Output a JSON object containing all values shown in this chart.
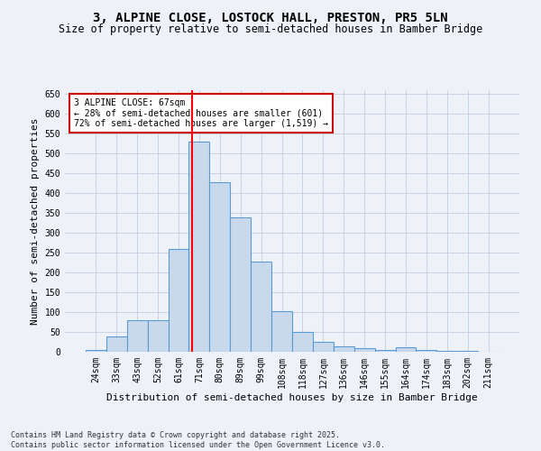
{
  "title1": "3, ALPINE CLOSE, LOSTOCK HALL, PRESTON, PR5 5LN",
  "title2": "Size of property relative to semi-detached houses in Bamber Bridge",
  "xlabel": "Distribution of semi-detached houses by size in Bamber Bridge",
  "ylabel": "Number of semi-detached properties",
  "categories": [
    "24sqm",
    "33sqm",
    "43sqm",
    "52sqm",
    "61sqm",
    "71sqm",
    "80sqm",
    "89sqm",
    "99sqm",
    "108sqm",
    "118sqm",
    "127sqm",
    "136sqm",
    "146sqm",
    "155sqm",
    "164sqm",
    "174sqm",
    "183sqm",
    "202sqm",
    "211sqm"
  ],
  "values": [
    5,
    38,
    80,
    80,
    260,
    530,
    428,
    338,
    228,
    103,
    51,
    26,
    13,
    8,
    5,
    11,
    5,
    2,
    2,
    1
  ],
  "bar_color": "#c9d9ec",
  "bar_edge_color": "#5b9bd5",
  "bar_edge_width": 0.8,
  "red_line_x": 4.65,
  "annotation_text": "3 ALPINE CLOSE: 67sqm\n← 28% of semi-detached houses are smaller (601)\n72% of semi-detached houses are larger (1,519) →",
  "annotation_box_color": "#ffffff",
  "annotation_box_edge_color": "#cc0000",
  "ylim": [
    0,
    660
  ],
  "yticks": [
    0,
    50,
    100,
    150,
    200,
    250,
    300,
    350,
    400,
    450,
    500,
    550,
    600,
    650
  ],
  "background_color": "#eef2f8",
  "plot_bg_color": "#eef2f8",
  "footer_line1": "Contains HM Land Registry data © Crown copyright and database right 2025.",
  "footer_line2": "Contains public sector information licensed under the Open Government Licence v3.0.",
  "title1_fontsize": 10,
  "title2_fontsize": 8.5,
  "tick_fontsize": 7,
  "xlabel_fontsize": 8,
  "ylabel_fontsize": 8,
  "annot_fontsize": 7,
  "footer_fontsize": 6
}
